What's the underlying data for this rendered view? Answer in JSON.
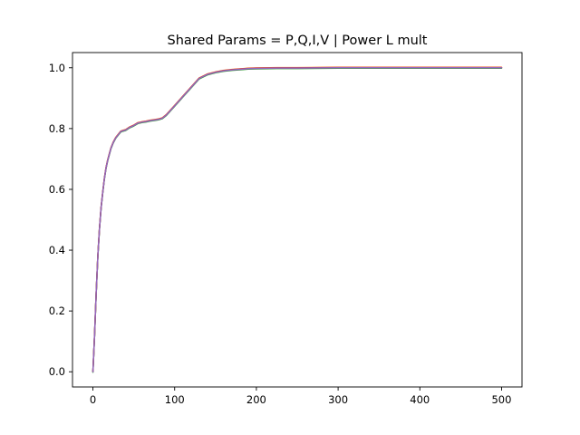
{
  "chart_data": {
    "type": "line",
    "title": "Shared Params = P,Q,I,V | Power L mult",
    "xlabel": "",
    "ylabel": "",
    "xlim": [
      -25,
      525
    ],
    "ylim": [
      -0.05,
      1.05
    ],
    "x_ticks": [
      0,
      100,
      200,
      300,
      400,
      500
    ],
    "y_ticks": [
      0.0,
      0.2,
      0.4,
      0.6,
      0.8,
      1.0
    ],
    "x_tick_labels": [
      "0",
      "100",
      "200",
      "300",
      "400",
      "500"
    ],
    "y_tick_labels": [
      "0.0",
      "0.2",
      "0.4",
      "0.6",
      "0.8",
      "1.0"
    ],
    "grid": false,
    "legend": "none",
    "colors": [
      "#1f77b4",
      "#ff7f0e",
      "#2ca02c",
      "#d62728",
      "#9467bd"
    ],
    "series": [
      {
        "x": [
          0,
          2,
          4,
          6,
          8,
          10,
          12,
          14,
          16,
          18,
          20,
          22,
          25,
          28,
          31,
          34,
          37,
          40,
          45,
          50,
          55,
          60,
          65,
          70,
          75,
          80,
          85,
          90,
          95,
          100,
          110,
          120,
          130,
          140,
          150,
          160,
          170,
          180,
          190,
          200,
          225,
          250,
          300,
          350,
          400,
          450,
          500
        ],
        "y": [
          0.0,
          0.12,
          0.26,
          0.38,
          0.47,
          0.54,
          0.59,
          0.635,
          0.67,
          0.695,
          0.715,
          0.735,
          0.755,
          0.77,
          0.78,
          0.79,
          0.793,
          0.795,
          0.804,
          0.81,
          0.818,
          0.821,
          0.823,
          0.826,
          0.828,
          0.83,
          0.834,
          0.845,
          0.86,
          0.875,
          0.905,
          0.935,
          0.965,
          0.978,
          0.985,
          0.99,
          0.993,
          0.995,
          0.997,
          0.998,
          0.999,
          0.999,
          1.0,
          1.0,
          1.0,
          1.0,
          1.0
        ]
      }
    ]
  }
}
